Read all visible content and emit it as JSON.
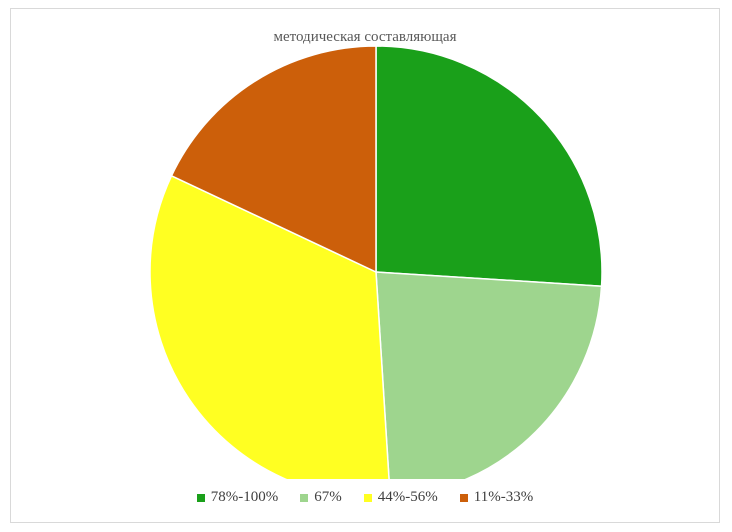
{
  "chart_data": {
    "type": "pie",
    "title": "методическая составляющая",
    "categories": [
      "78%-100%",
      "67%",
      "44%-56%",
      "11%-33%"
    ],
    "values": [
      26,
      23,
      33,
      18
    ],
    "colors": [
      "#1aa01a",
      "#9ed58e",
      "#ffff22",
      "#cc5f0a"
    ],
    "start_angle_deg": 0,
    "direction": "clockwise",
    "legend_position": "bottom"
  }
}
